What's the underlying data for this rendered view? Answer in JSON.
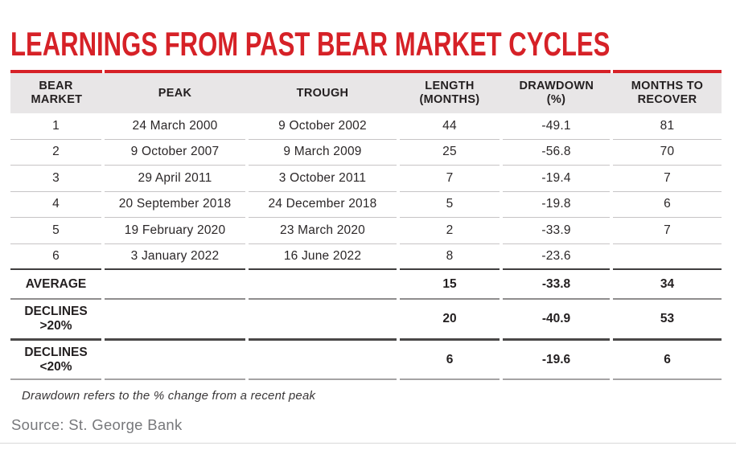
{
  "title": "LEARNINGS FROM PAST BEAR MARKET CYCLES",
  "footnote": "Drawdown refers to the % change from a recent peak",
  "source": "Source: St. George Bank",
  "colors": {
    "accent_red": "#d62127",
    "header_bg": "#e8e6e7",
    "body_text": "#2b2728",
    "source_text": "#77787b",
    "heavy_rule": "#403e3f",
    "light_rule": "#c6c4c5"
  },
  "chart_data": {
    "type": "table",
    "title": "LEARNINGS FROM PAST BEAR MARKET CYCLES",
    "columns": [
      "BEAR MARKET",
      "PEAK",
      "TROUGH",
      "LENGTH (MONTHS)",
      "DRAWDOWN (%)",
      "MONTHS TO RECOVER"
    ],
    "rows": [
      [
        "1",
        "24 March 2000",
        "9 October 2002",
        "44",
        "-49.1",
        "81"
      ],
      [
        "2",
        "9 October 2007",
        "9 March 2009",
        "25",
        "-56.8",
        "70"
      ],
      [
        "3",
        "29 April 2011",
        "3 October 2011",
        "7",
        "-19.4",
        "7"
      ],
      [
        "4",
        "20 September 2018",
        "24 December 2018",
        "5",
        "-19.8",
        "6"
      ],
      [
        "5",
        "19 February 2020",
        "23 March 2020",
        "2",
        "-33.9",
        "7"
      ],
      [
        "6",
        "3 January 2022",
        "16 June 2022",
        "8",
        "-23.6",
        ""
      ],
      [
        "AVERAGE",
        "",
        "",
        "15",
        "-33.8",
        "34"
      ],
      [
        "DECLINES >20%",
        "",
        "",
        "20",
        "-40.9",
        "53"
      ],
      [
        "DECLINES <20%",
        "",
        "",
        "6",
        "-19.6",
        "6"
      ]
    ],
    "summary_row_labels": [
      "AVERAGE",
      "DECLINES >20%",
      "DECLINES <20%"
    ],
    "notes": "Row 6 has no months-to-recover value shown"
  }
}
